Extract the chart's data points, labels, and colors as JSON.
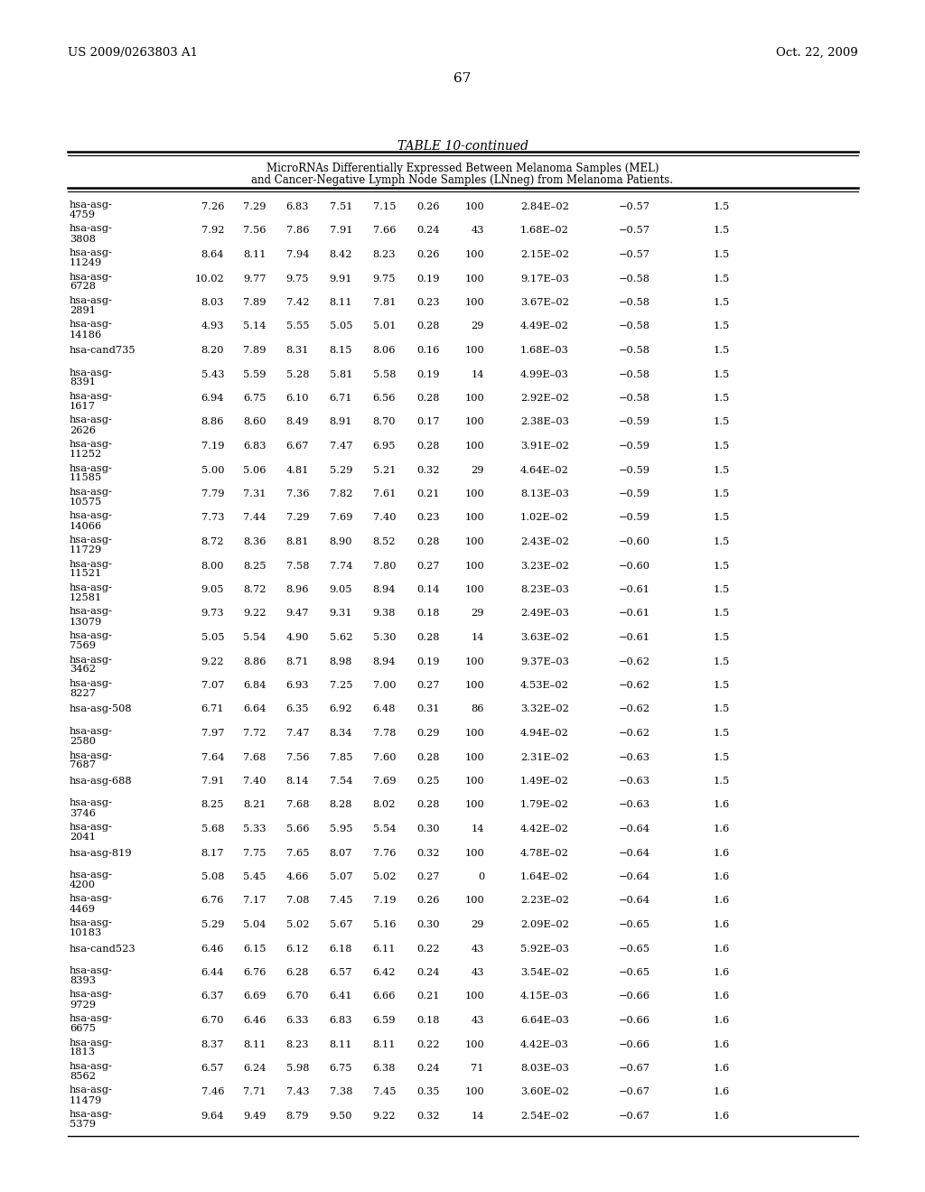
{
  "patent_left": "US 2009/0263803 A1",
  "patent_right": "Oct. 22, 2009",
  "page_number": "67",
  "table_title": "TABLE 10-continued",
  "table_subtitle": "MicroRNAs Differentially Expressed Between Melanoma Samples (MEL)\nand Cancer-Negative Lymph Node Samples (LNneg) from Melanoma Patients.",
  "rows": [
    [
      "hsa-asg-\n4759",
      "7.26",
      "7.29",
      "6.83",
      "7.51",
      "7.15",
      "0.26",
      "100",
      "2.84E–02",
      "−0.57",
      "1.5"
    ],
    [
      "hsa-asg-\n3808",
      "7.92",
      "7.56",
      "7.86",
      "7.91",
      "7.66",
      "0.24",
      "43",
      "1.68E–02",
      "−0.57",
      "1.5"
    ],
    [
      "hsa-asg-\n11249",
      "8.64",
      "8.11",
      "7.94",
      "8.42",
      "8.23",
      "0.26",
      "100",
      "2.15E–02",
      "−0.57",
      "1.5"
    ],
    [
      "hsa-asg-\n6728",
      "10.02",
      "9.77",
      "9.75",
      "9.91",
      "9.75",
      "0.19",
      "100",
      "9.17E–03",
      "−0.58",
      "1.5"
    ],
    [
      "hsa-asg-\n2891",
      "8.03",
      "7.89",
      "7.42",
      "8.11",
      "7.81",
      "0.23",
      "100",
      "3.67E–02",
      "−0.58",
      "1.5"
    ],
    [
      "hsa-asg-\n14186",
      "4.93",
      "5.14",
      "5.55",
      "5.05",
      "5.01",
      "0.28",
      "29",
      "4.49E–02",
      "−0.58",
      "1.5"
    ],
    [
      "hsa-cand735",
      "8.20",
      "7.89",
      "8.31",
      "8.15",
      "8.06",
      "0.16",
      "100",
      "1.68E–03",
      "−0.58",
      "1.5"
    ],
    [
      "hsa-asg-\n8391",
      "5.43",
      "5.59",
      "5.28",
      "5.81",
      "5.58",
      "0.19",
      "14",
      "4.99E–03",
      "−0.58",
      "1.5"
    ],
    [
      "hsa-asg-\n1617",
      "6.94",
      "6.75",
      "6.10",
      "6.71",
      "6.56",
      "0.28",
      "100",
      "2.92E–02",
      "−0.58",
      "1.5"
    ],
    [
      "hsa-asg-\n2626",
      "8.86",
      "8.60",
      "8.49",
      "8.91",
      "8.70",
      "0.17",
      "100",
      "2.38E–03",
      "−0.59",
      "1.5"
    ],
    [
      "hsa-asg-\n11252",
      "7.19",
      "6.83",
      "6.67",
      "7.47",
      "6.95",
      "0.28",
      "100",
      "3.91E–02",
      "−0.59",
      "1.5"
    ],
    [
      "hsa-asg-\n11585",
      "5.00",
      "5.06",
      "4.81",
      "5.29",
      "5.21",
      "0.32",
      "29",
      "4.64E–02",
      "−0.59",
      "1.5"
    ],
    [
      "hsa-asg-\n10575",
      "7.79",
      "7.31",
      "7.36",
      "7.82",
      "7.61",
      "0.21",
      "100",
      "8.13E–03",
      "−0.59",
      "1.5"
    ],
    [
      "hsa-asg-\n14066",
      "7.73",
      "7.44",
      "7.29",
      "7.69",
      "7.40",
      "0.23",
      "100",
      "1.02E–02",
      "−0.59",
      "1.5"
    ],
    [
      "hsa-asg-\n11729",
      "8.72",
      "8.36",
      "8.81",
      "8.90",
      "8.52",
      "0.28",
      "100",
      "2.43E–02",
      "−0.60",
      "1.5"
    ],
    [
      "hsa-asg-\n11521",
      "8.00",
      "8.25",
      "7.58",
      "7.74",
      "7.80",
      "0.27",
      "100",
      "3.23E–02",
      "−0.60",
      "1.5"
    ],
    [
      "hsa-asg-\n12581",
      "9.05",
      "8.72",
      "8.96",
      "9.05",
      "8.94",
      "0.14",
      "100",
      "8.23E–03",
      "−0.61",
      "1.5"
    ],
    [
      "hsa-asg-\n13079",
      "9.73",
      "9.22",
      "9.47",
      "9.31",
      "9.38",
      "0.18",
      "29",
      "2.49E–03",
      "−0.61",
      "1.5"
    ],
    [
      "hsa-asg-\n7569",
      "5.05",
      "5.54",
      "4.90",
      "5.62",
      "5.30",
      "0.28",
      "14",
      "3.63E–02",
      "−0.61",
      "1.5"
    ],
    [
      "hsa-asg-\n3462",
      "9.22",
      "8.86",
      "8.71",
      "8.98",
      "8.94",
      "0.19",
      "100",
      "9.37E–03",
      "−0.62",
      "1.5"
    ],
    [
      "hsa-asg-\n8227",
      "7.07",
      "6.84",
      "6.93",
      "7.25",
      "7.00",
      "0.27",
      "100",
      "4.53E–02",
      "−0.62",
      "1.5"
    ],
    [
      "hsa-asg-508",
      "6.71",
      "6.64",
      "6.35",
      "6.92",
      "6.48",
      "0.31",
      "86",
      "3.32E–02",
      "−0.62",
      "1.5"
    ],
    [
      "hsa-asg-\n2580",
      "7.97",
      "7.72",
      "7.47",
      "8.34",
      "7.78",
      "0.29",
      "100",
      "4.94E–02",
      "−0.62",
      "1.5"
    ],
    [
      "hsa-asg-\n7687",
      "7.64",
      "7.68",
      "7.56",
      "7.85",
      "7.60",
      "0.28",
      "100",
      "2.31E–02",
      "−0.63",
      "1.5"
    ],
    [
      "hsa-asg-688",
      "7.91",
      "7.40",
      "8.14",
      "7.54",
      "7.69",
      "0.25",
      "100",
      "1.49E–02",
      "−0.63",
      "1.5"
    ],
    [
      "hsa-asg-\n3746",
      "8.25",
      "8.21",
      "7.68",
      "8.28",
      "8.02",
      "0.28",
      "100",
      "1.79E–02",
      "−0.63",
      "1.6"
    ],
    [
      "hsa-asg-\n2041",
      "5.68",
      "5.33",
      "5.66",
      "5.95",
      "5.54",
      "0.30",
      "14",
      "4.42E–02",
      "−0.64",
      "1.6"
    ],
    [
      "hsa-asg-819",
      "8.17",
      "7.75",
      "7.65",
      "8.07",
      "7.76",
      "0.32",
      "100",
      "4.78E–02",
      "−0.64",
      "1.6"
    ],
    [
      "hsa-asg-\n4200",
      "5.08",
      "5.45",
      "4.66",
      "5.07",
      "5.02",
      "0.27",
      "0",
      "1.64E–02",
      "−0.64",
      "1.6"
    ],
    [
      "hsa-asg-\n4469",
      "6.76",
      "7.17",
      "7.08",
      "7.45",
      "7.19",
      "0.26",
      "100",
      "2.23E–02",
      "−0.64",
      "1.6"
    ],
    [
      "hsa-asg-\n10183",
      "5.29",
      "5.04",
      "5.02",
      "5.67",
      "5.16",
      "0.30",
      "29",
      "2.09E–02",
      "−0.65",
      "1.6"
    ],
    [
      "hsa-cand523",
      "6.46",
      "6.15",
      "6.12",
      "6.18",
      "6.11",
      "0.22",
      "43",
      "5.92E–03",
      "−0.65",
      "1.6"
    ],
    [
      "hsa-asg-\n8393",
      "6.44",
      "6.76",
      "6.28",
      "6.57",
      "6.42",
      "0.24",
      "43",
      "3.54E–02",
      "−0.65",
      "1.6"
    ],
    [
      "hsa-asg-\n9729",
      "6.37",
      "6.69",
      "6.70",
      "6.41",
      "6.66",
      "0.21",
      "100",
      "4.15E–03",
      "−0.66",
      "1.6"
    ],
    [
      "hsa-asg-\n6675",
      "6.70",
      "6.46",
      "6.33",
      "6.83",
      "6.59",
      "0.18",
      "43",
      "6.64E–03",
      "−0.66",
      "1.6"
    ],
    [
      "hsa-asg-\n1813",
      "8.37",
      "8.11",
      "8.23",
      "8.11",
      "8.11",
      "0.22",
      "100",
      "4.42E–03",
      "−0.66",
      "1.6"
    ],
    [
      "hsa-asg-\n8562",
      "6.57",
      "6.24",
      "5.98",
      "6.75",
      "6.38",
      "0.24",
      "71",
      "8.03E–03",
      "−0.67",
      "1.6"
    ],
    [
      "hsa-asg-\n11479",
      "7.46",
      "7.71",
      "7.43",
      "7.38",
      "7.45",
      "0.35",
      "100",
      "3.60E–02",
      "−0.67",
      "1.6"
    ],
    [
      "hsa-asg-\n5379",
      "9.64",
      "9.49",
      "8.79",
      "9.50",
      "9.22",
      "0.32",
      "14",
      "2.54E–02",
      "−0.67",
      "1.6"
    ]
  ]
}
